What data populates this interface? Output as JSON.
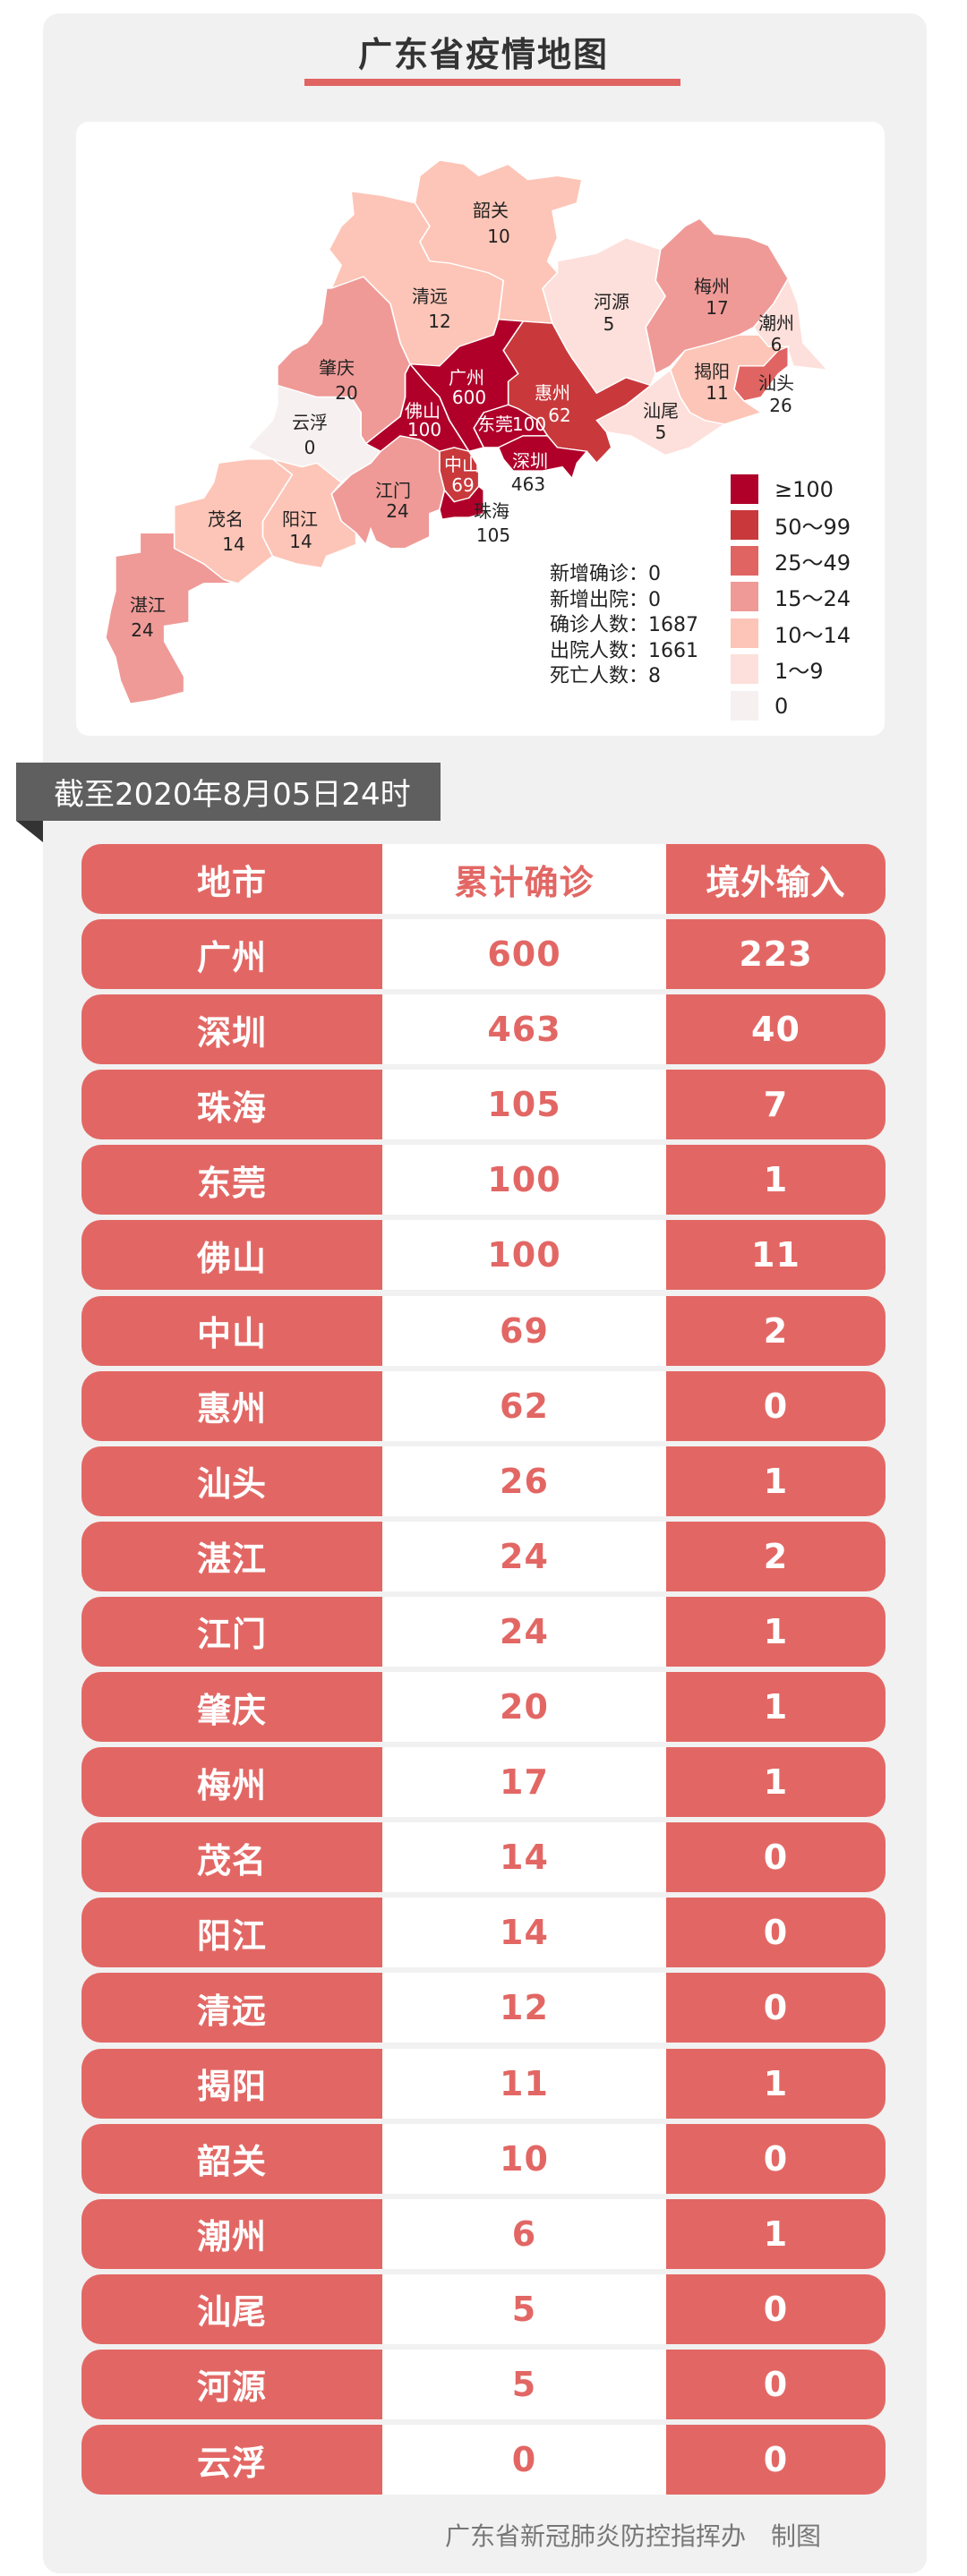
{
  "title": "广东省疫情地图",
  "colors": {
    "ge100": "#b0002a",
    "50_99": "#c9393b",
    "25_49": "#e06462",
    "15_24": "#ef9a97",
    "10_14": "#fdc5b7",
    "1_9": "#fde0db",
    "0": "#f7f0f0",
    "table_red": "#e26764"
  },
  "map_labels": [
    {
      "name": "韶关",
      "value": "10"
    },
    {
      "name": "清远",
      "value": "12"
    },
    {
      "name": "河源",
      "value": "5"
    },
    {
      "name": "梅州",
      "value": "17"
    },
    {
      "name": "潮州",
      "value": "6"
    },
    {
      "name": "揭阳",
      "value": "11"
    },
    {
      "name": "汕头",
      "value": "26"
    },
    {
      "name": "汕尾",
      "value": "5"
    },
    {
      "name": "惠州",
      "value": "62"
    },
    {
      "name": "广州",
      "value": "600"
    },
    {
      "name": "佛山",
      "value": "100"
    },
    {
      "name": "东莞",
      "value": "100"
    },
    {
      "name": "深圳",
      "value": "463"
    },
    {
      "name": "中山",
      "value": "69"
    },
    {
      "name": "珠海",
      "value": "105"
    },
    {
      "name": "江门",
      "value": "24"
    },
    {
      "name": "肇庆",
      "value": "20"
    },
    {
      "name": "云浮",
      "value": "0"
    },
    {
      "name": "茂名",
      "value": "14"
    },
    {
      "name": "阳江",
      "value": "14"
    },
    {
      "name": "湛江",
      "value": "24"
    }
  ],
  "stats": [
    "新增确诊：0",
    "新增出院：0",
    "确诊人数：1687",
    "出院人数：1661",
    "死亡人数：8"
  ],
  "legend": [
    "≥100",
    "50～99",
    "25～49",
    "15～24",
    "10～14",
    "1～9",
    "0"
  ],
  "date_banner": "截至2020年8月05日24时",
  "table": {
    "headers": [
      "地市",
      "累计确诊",
      "境外输入"
    ],
    "rows": [
      [
        "广州",
        "600",
        "223"
      ],
      [
        "深圳",
        "463",
        "40"
      ],
      [
        "珠海",
        "105",
        "7"
      ],
      [
        "东莞",
        "100",
        "1"
      ],
      [
        "佛山",
        "100",
        "11"
      ],
      [
        "中山",
        "69",
        "2"
      ],
      [
        "惠州",
        "62",
        "0"
      ],
      [
        "汕头",
        "26",
        "1"
      ],
      [
        "湛江",
        "24",
        "2"
      ],
      [
        "江门",
        "24",
        "1"
      ],
      [
        "肇庆",
        "20",
        "1"
      ],
      [
        "梅州",
        "17",
        "1"
      ],
      [
        "茂名",
        "14",
        "0"
      ],
      [
        "阳江",
        "14",
        "0"
      ],
      [
        "清远",
        "12",
        "0"
      ],
      [
        "揭阳",
        "11",
        "1"
      ],
      [
        "韶关",
        "10",
        "0"
      ],
      [
        "潮州",
        "6",
        "1"
      ],
      [
        "汕尾",
        "5",
        "0"
      ],
      [
        "河源",
        "5",
        "0"
      ],
      [
        "云浮",
        "0",
        "0"
      ]
    ]
  },
  "footer": "广东省新冠肺炎防控指挥办　制图"
}
